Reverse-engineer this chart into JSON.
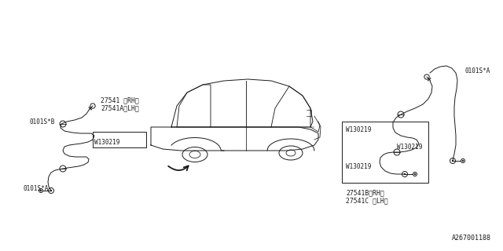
{
  "bg_color": "#ffffff",
  "line_color": "#1a1a1a",
  "text_color": "#1a1a1a",
  "diagram_number": "A267001188",
  "left_part1": "27541 〈RH〉",
  "left_part2": "27541A〈LH〉",
  "left_w1": "W130219",
  "left_clip_b": "0101S*B",
  "left_clip_a": "0101S*A",
  "right_part1": "27541B〈RH〉",
  "right_part2": "27541C 〈LH〉",
  "right_w1": "W130219",
  "right_w2": "W130219",
  "right_w3": "W130219",
  "right_clip_a": "0101S*A",
  "fig_w": 6.4,
  "fig_h": 3.2,
  "dpi": 100
}
